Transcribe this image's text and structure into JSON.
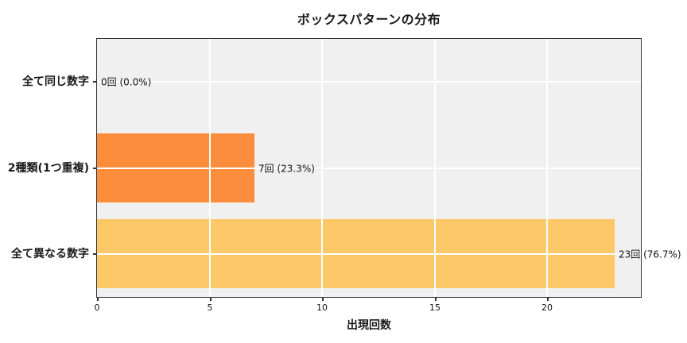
{
  "chart_data": {
    "type": "bar",
    "orientation": "horizontal",
    "title": "ボックスパターンの分布",
    "xlabel": "出現回数",
    "ylabel": "",
    "categories": [
      "全て同じ数字",
      "2種類(1つ重複)",
      "全て異なる数字"
    ],
    "values": [
      0,
      7,
      23
    ],
    "value_labels": [
      "0回 (0.0%)",
      "7回 (23.3%)",
      "23回 (76.7%)"
    ],
    "percentages": [
      0.0,
      23.3,
      76.7
    ],
    "bar_colors": [
      "#fb8d3d",
      "#fb8d3d",
      "#fcc868"
    ],
    "x_ticks": [
      0,
      5,
      10,
      15,
      20
    ],
    "xlim": [
      0,
      24.15
    ],
    "grid": true,
    "grid_color": "#ffffff",
    "plot_background": "#f0f0f0",
    "figure_background": "#ffffff",
    "spine_color": "#333333",
    "legend": "none"
  }
}
